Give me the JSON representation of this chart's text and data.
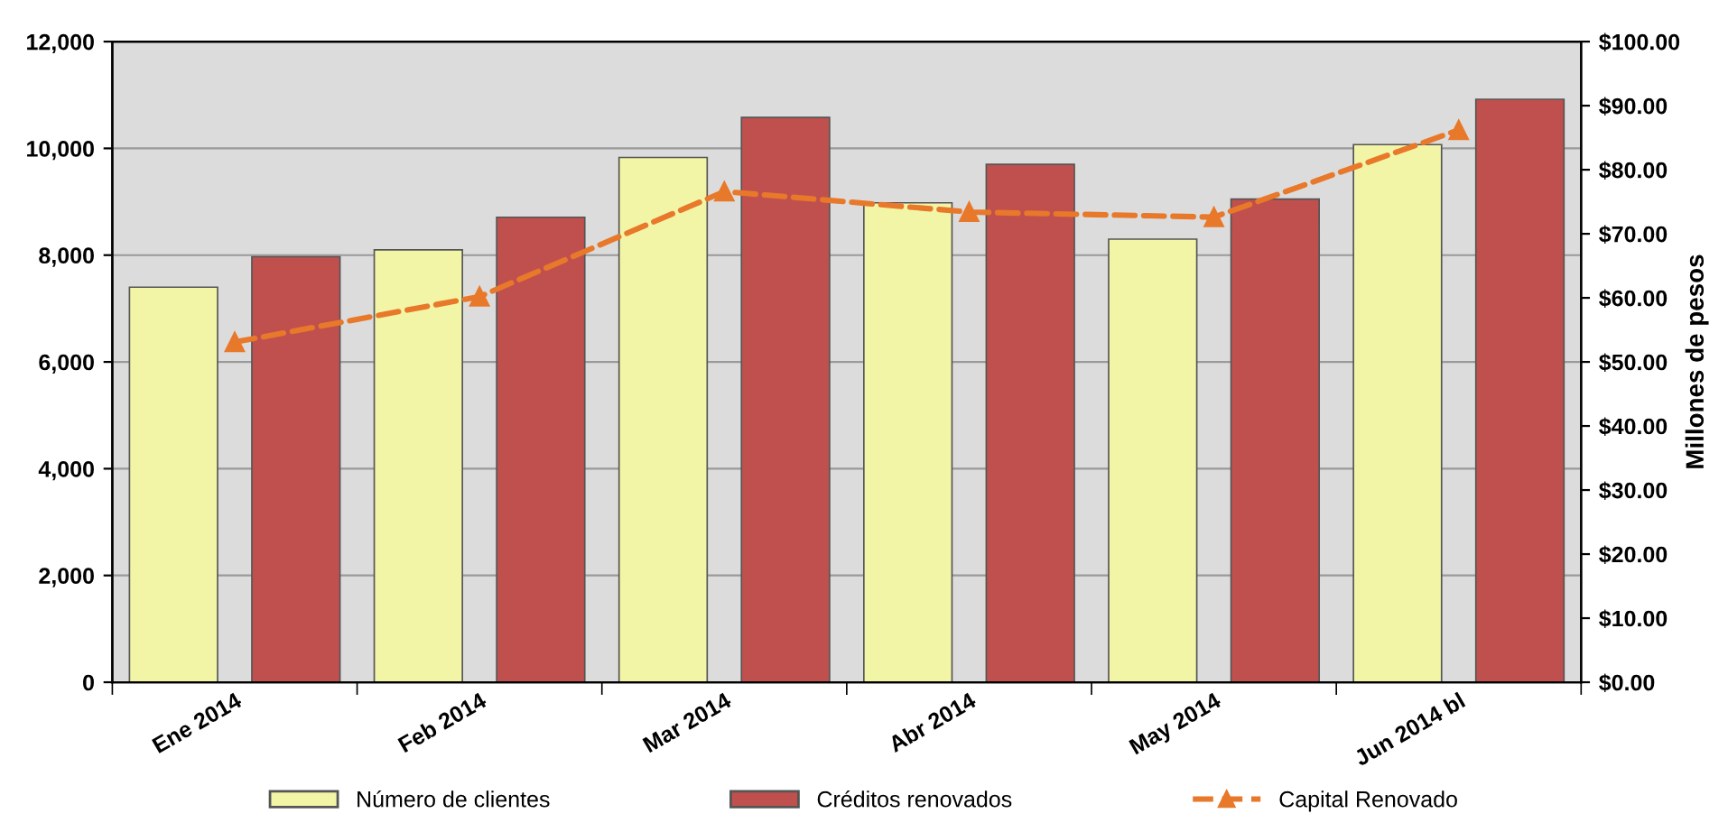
{
  "chart_data": {
    "type": "bar",
    "categories": [
      "Ene 2014",
      "Feb 2014",
      "Mar 2014",
      "Abr 2014",
      "May 2014",
      "Jun 2014 bl"
    ],
    "series": [
      {
        "name": "Número de clientes",
        "color": "#f3f5a6",
        "values": [
          7400,
          8100,
          9830,
          8980,
          8300,
          10070
        ]
      },
      {
        "name": "Créditos renovados",
        "color": "#c0504d",
        "values": [
          7970,
          8710,
          10580,
          9700,
          9050,
          10920
        ]
      },
      {
        "name": "Capital Renovado",
        "type": "line",
        "axis": "y2",
        "color": "#e8782a",
        "marker": "triangle",
        "line_style": "dashed",
        "values": [
          53.1,
          60.2,
          76.6,
          73.4,
          72.6,
          86.2
        ]
      }
    ],
    "ylim": [
      0,
      12000
    ],
    "yticks": [
      0,
      {
        "value": 2000,
        "label": "2,000"
      },
      {
        "value": 4000,
        "label": "4,000"
      },
      {
        "value": 6000,
        "label": "6,000"
      },
      {
        "value": 8000,
        "label": "8,000"
      },
      {
        "value": 10000,
        "label": "10,000"
      },
      {
        "value": 12000,
        "label": "12,000"
      }
    ],
    "y2lim": [
      0,
      100
    ],
    "y2ticks": [
      {
        "value": 0,
        "label": "$0.00"
      },
      {
        "value": 10,
        "label": "$10.00"
      },
      {
        "value": 20,
        "label": "$20.00"
      },
      {
        "value": 30,
        "label": "$30.00"
      },
      {
        "value": 40,
        "label": "$40.00"
      },
      {
        "value": 50,
        "label": "$50.00"
      },
      {
        "value": 60,
        "label": "$60.00"
      },
      {
        "value": 70,
        "label": "$70.00"
      },
      {
        "value": 80,
        "label": "$80.00"
      },
      {
        "value": 90,
        "label": "$90.00"
      },
      {
        "value": 100,
        "label": "$100.00"
      }
    ],
    "y2label": "Millones de pesos",
    "grid": "y",
    "legend": "bottom"
  }
}
